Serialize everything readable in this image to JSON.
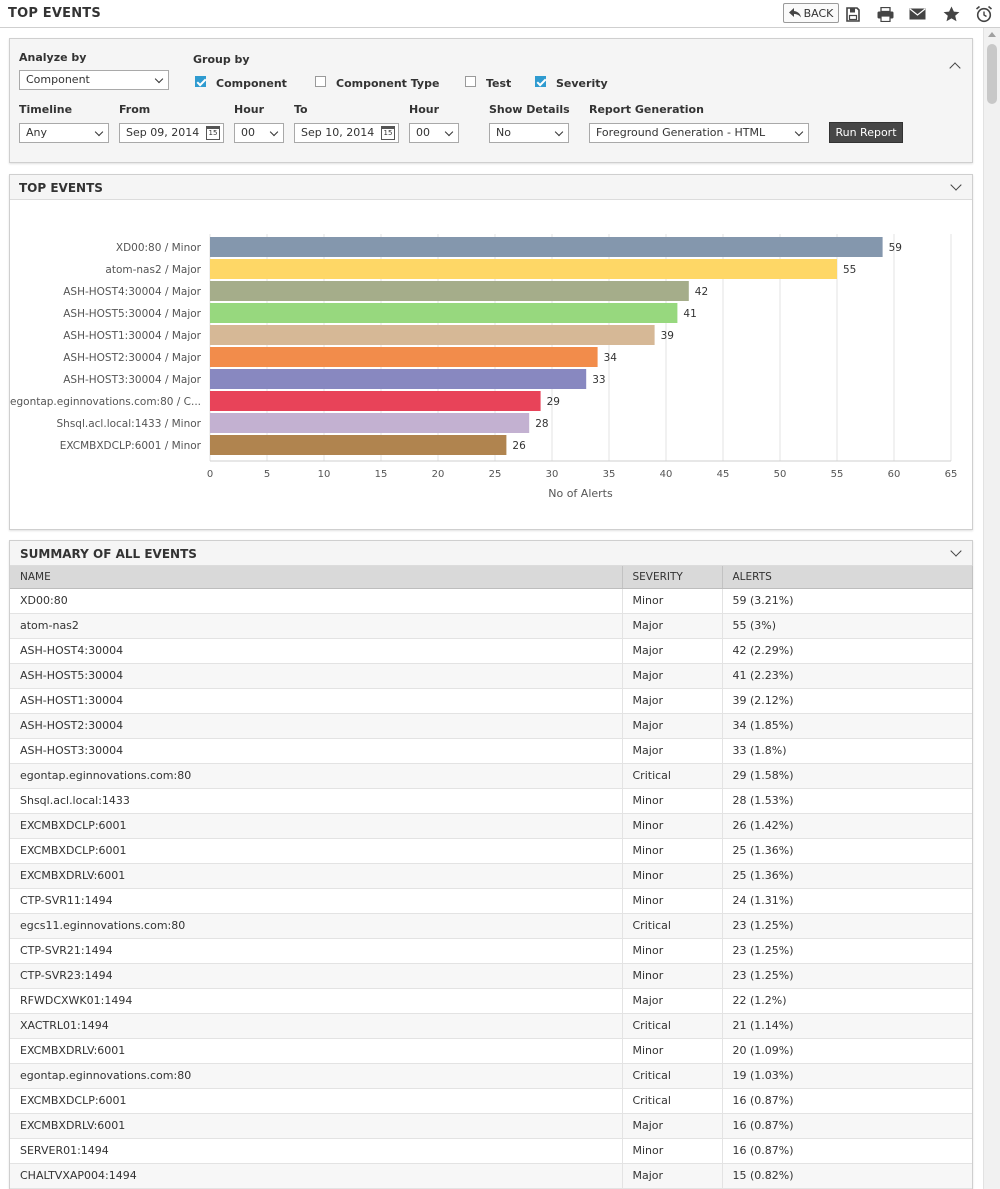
{
  "header": {
    "title": "TOP EVENTS",
    "back_label": "BACK",
    "icons": [
      "save-icon",
      "print-icon",
      "mail-icon",
      "star-icon",
      "alarm-clock-icon"
    ]
  },
  "filters": {
    "analyze_by_label": "Analyze by",
    "analyze_by_value": "Component",
    "group_by_label": "Group by",
    "group_by_options": [
      {
        "label": "Component",
        "checked": true
      },
      {
        "label": "Component Type",
        "checked": false
      },
      {
        "label": "Test",
        "checked": false
      },
      {
        "label": "Severity",
        "checked": true
      }
    ],
    "timeline_label": "Timeline",
    "timeline_value": "Any",
    "from_label": "From",
    "from_value": "Sep 09, 2014",
    "from_hour_label": "Hour",
    "from_hour_value": "00",
    "to_label": "To",
    "to_value": "Sep 10, 2014",
    "to_hour_label": "Hour",
    "to_hour_value": "00",
    "show_details_label": "Show Details",
    "show_details_value": "No",
    "report_generation_label": "Report Generation",
    "report_generation_value": "Foreground Generation - HTML",
    "run_report_label": "Run Report",
    "calendar_day": "15"
  },
  "chart_panel": {
    "title": "TOP EVENTS"
  },
  "chart_data": {
    "type": "bar",
    "orientation": "horizontal",
    "categories": [
      "XD00:80 / Minor",
      "atom-nas2 / Major",
      "ASH-HOST4:30004 / Major",
      "ASH-HOST5:30004 / Major",
      "ASH-HOST1:30004 / Major",
      "ASH-HOST2:30004 / Major",
      "ASH-HOST3:30004 / Major",
      "egontap.eginnovations.com:80 / C...",
      "Shsql.acl.local:1433 / Minor",
      "EXCMBXDCLP:6001 / Minor"
    ],
    "values": [
      59,
      55,
      42,
      41,
      39,
      34,
      33,
      29,
      28,
      26
    ],
    "colors": [
      "#8497ad",
      "#fed766",
      "#a5ad8a",
      "#97d87e",
      "#d6b896",
      "#f28c4b",
      "#8888c0",
      "#e84359",
      "#c3b1d1",
      "#b0844f"
    ],
    "xlabel": "No of Alerts",
    "xlim": [
      0,
      65
    ],
    "xticks": [
      0,
      5,
      10,
      15,
      20,
      25,
      30,
      35,
      40,
      45,
      50,
      55,
      60,
      65
    ],
    "grid": true,
    "data_labels": true
  },
  "summary": {
    "title": "SUMMARY OF ALL EVENTS",
    "columns": [
      "NAME",
      "SEVERITY",
      "ALERTS"
    ],
    "rows": [
      [
        "XD00:80",
        "Minor",
        "59 (3.21%)"
      ],
      [
        "atom-nas2",
        "Major",
        "55 (3%)"
      ],
      [
        "ASH-HOST4:30004",
        "Major",
        "42 (2.29%)"
      ],
      [
        "ASH-HOST5:30004",
        "Major",
        "41 (2.23%)"
      ],
      [
        "ASH-HOST1:30004",
        "Major",
        "39 (2.12%)"
      ],
      [
        "ASH-HOST2:30004",
        "Major",
        "34 (1.85%)"
      ],
      [
        "ASH-HOST3:30004",
        "Major",
        "33 (1.8%)"
      ],
      [
        "egontap.eginnovations.com:80",
        "Critical",
        "29 (1.58%)"
      ],
      [
        "Shsql.acl.local:1433",
        "Minor",
        "28 (1.53%)"
      ],
      [
        "EXCMBXDCLP:6001",
        "Minor",
        "26 (1.42%)"
      ],
      [
        "EXCMBXDCLP:6001",
        "Minor",
        "25 (1.36%)"
      ],
      [
        "EXCMBXDRLV:6001",
        "Minor",
        "25 (1.36%)"
      ],
      [
        "CTP-SVR11:1494",
        "Minor",
        "24 (1.31%)"
      ],
      [
        "egcs11.eginnovations.com:80",
        "Critical",
        "23 (1.25%)"
      ],
      [
        "CTP-SVR21:1494",
        "Minor",
        "23 (1.25%)"
      ],
      [
        "CTP-SVR23:1494",
        "Minor",
        "23 (1.25%)"
      ],
      [
        "RFWDCXWK01:1494",
        "Major",
        "22 (1.2%)"
      ],
      [
        "XACTRL01:1494",
        "Critical",
        "21 (1.14%)"
      ],
      [
        "EXCMBXDRLV:6001",
        "Minor",
        "20 (1.09%)"
      ],
      [
        "egontap.eginnovations.com:80",
        "Critical",
        "19 (1.03%)"
      ],
      [
        "EXCMBXDCLP:6001",
        "Critical",
        "16 (0.87%)"
      ],
      [
        "EXCMBXDRLV:6001",
        "Major",
        "16 (0.87%)"
      ],
      [
        "SERVER01:1494",
        "Minor",
        "16 (0.87%)"
      ],
      [
        "CHALTVXAP004:1494",
        "Major",
        "15 (0.82%)"
      ]
    ]
  }
}
